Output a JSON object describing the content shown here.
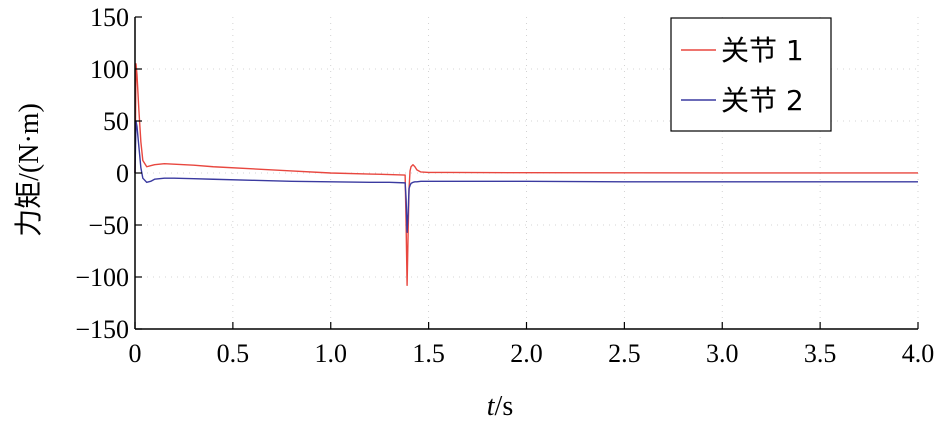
{
  "chart_data": {
    "type": "line",
    "title": "",
    "xlabel_italic": "t",
    "xlabel_rest": "/s",
    "ylabel": "力矩/(N·m)",
    "xlim": [
      0,
      4.0
    ],
    "ylim": [
      -150,
      150
    ],
    "x_ticks": [
      0,
      0.5,
      1.0,
      1.5,
      2.0,
      2.5,
      3.0,
      3.5,
      4.0
    ],
    "x_tick_labels": [
      "0",
      "0.5",
      "1.0",
      "1.5",
      "2.0",
      "2.5",
      "3.0",
      "3.5",
      "4.0"
    ],
    "y_ticks": [
      150,
      100,
      50,
      0,
      -50,
      -100,
      -150
    ],
    "y_tick_labels": [
      "150",
      "100",
      "50",
      "0",
      "−50",
      "−100",
      "−150"
    ],
    "grid": "dotted",
    "legend_position": "top-right",
    "series": [
      {
        "name": "关节 1",
        "color": "#e8473f",
        "x": [
          0,
          0.005,
          0.01,
          0.02,
          0.03,
          0.04,
          0.06,
          0.08,
          0.1,
          0.15,
          0.2,
          0.3,
          0.4,
          0.6,
          0.8,
          1.0,
          1.2,
          1.3,
          1.38,
          1.385,
          1.39,
          1.395,
          1.4,
          1.405,
          1.41,
          1.42,
          1.43,
          1.44,
          1.46,
          1.5,
          1.6,
          2.0,
          2.5,
          3.0,
          3.5,
          4.0
        ],
        "y": [
          0,
          105,
          95,
          60,
          30,
          12,
          6,
          7,
          8,
          9,
          8.5,
          7.5,
          6,
          4,
          2,
          0,
          -1,
          -1.5,
          -2,
          -50,
          -108,
          -60,
          -15,
          2,
          6,
          8,
          6,
          3,
          1,
          0.5,
          0.5,
          0.3,
          0.2,
          0.1,
          0.1,
          0.1
        ]
      },
      {
        "name": "关节 2",
        "color": "#3a3aa0",
        "x": [
          0,
          0.005,
          0.01,
          0.02,
          0.03,
          0.04,
          0.06,
          0.08,
          0.1,
          0.15,
          0.2,
          0.3,
          0.4,
          0.6,
          0.8,
          1.0,
          1.2,
          1.3,
          1.38,
          1.385,
          1.39,
          1.395,
          1.4,
          1.405,
          1.41,
          1.42,
          1.43,
          1.44,
          1.46,
          1.5,
          1.6,
          2.0,
          2.5,
          3.0,
          3.5,
          4.0
        ],
        "y": [
          0,
          50,
          45,
          25,
          5,
          -5,
          -9,
          -8,
          -6,
          -5,
          -5,
          -5.5,
          -6,
          -7,
          -8,
          -8.5,
          -9,
          -9,
          -9.5,
          -25,
          -57,
          -40,
          -15,
          -12,
          -10,
          -9,
          -8.5,
          -8.5,
          -8,
          -8,
          -8,
          -8,
          -8.5,
          -8.5,
          -8.5,
          -8.5
        ]
      }
    ]
  }
}
